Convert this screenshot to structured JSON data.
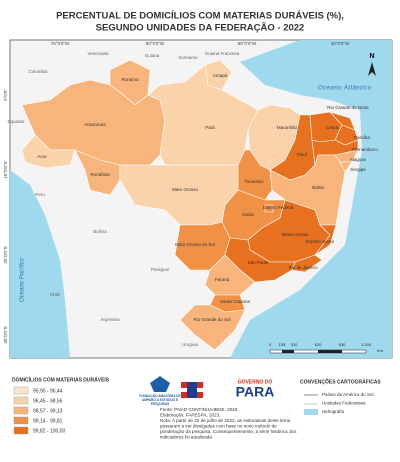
{
  "header": {
    "title": [
      "PERCENTUAL DE DOMICÍLIOS COM MATERIAS DURÁVEIS (%),",
      "SEGUNDO UNIDADES DA FEDERAÇÃO - 2022"
    ]
  },
  "graticule": {
    "lon": [
      "70°0'0\"W",
      "60°0'0\"W",
      "50°0'0\"W",
      "40°0'0\"W"
    ],
    "lat": [
      "0°0'0\"",
      "10°0'0\"S",
      "20°0'0\"S",
      "30°0'0\"S"
    ]
  },
  "states": [
    {
      "name": "Roraima",
      "color": "#f7b57c"
    },
    {
      "name": "Amapá",
      "color": "#fbd3ab"
    },
    {
      "name": "Amazonas",
      "color": "#f7b57c"
    },
    {
      "name": "Acre",
      "color": "#fbd3ab"
    },
    {
      "name": "Rondônia",
      "color": "#f7b57c"
    },
    {
      "name": "Pará",
      "color": "#fbd3ab"
    },
    {
      "name": "Mato Grosso",
      "color": "#fbd3ab"
    },
    {
      "name": "Maranhão",
      "color": "#fbd3ab"
    },
    {
      "name": "Tocantins",
      "color": "#f19145"
    },
    {
      "name": "Piauí",
      "color": "#e8711f"
    },
    {
      "name": "Ceará",
      "color": "#e8711f"
    },
    {
      "name": "Rio Grande do Norte",
      "color": "#e8711f"
    },
    {
      "name": "Paraíba",
      "color": "#e8711f"
    },
    {
      "name": "Pernambuco",
      "color": "#e8711f"
    },
    {
      "name": "Alagoas",
      "color": "#f7b57c"
    },
    {
      "name": "Sergipe",
      "color": "#f7b57c"
    },
    {
      "name": "Bahia",
      "color": "#f7b57c"
    },
    {
      "name": "Goiás",
      "color": "#f19145"
    },
    {
      "name": "Distrito Federal",
      "color": "#f19145"
    },
    {
      "name": "Mato Grosso do Sul",
      "color": "#f19145"
    },
    {
      "name": "Minas Gerais",
      "color": "#e8711f"
    },
    {
      "name": "Espírito Santo",
      "color": "#e8711f"
    },
    {
      "name": "Rio de Janeiro",
      "color": "#e8711f"
    },
    {
      "name": "São Paulo",
      "color": "#e8711f"
    },
    {
      "name": "Paraná",
      "color": "#f7b57c"
    },
    {
      "name": "Santa Catarina",
      "color": "#f19145"
    },
    {
      "name": "Rio Grande do Sul",
      "color": "#f7b57c"
    }
  ],
  "countries": [
    "Venezuela",
    "Guiana",
    "Suriname",
    "Guiana Francesa",
    "Colombia",
    "Equador",
    "Peru",
    "Bolívia",
    "Paraguai",
    "Chile",
    "Argentina",
    "Uruguai"
  ],
  "oceans": [
    "Oceano Atlântico",
    "Oceano Pacífico"
  ],
  "north": "N",
  "scale": {
    "labels": [
      "0",
      "155",
      "310",
      "620",
      "930",
      "1.240"
    ],
    "unit": "Km"
  },
  "legend": {
    "title": "DOMICÍLIOS COM MATERIAS DURÁVEIS",
    "classes": [
      {
        "label": "95,90 - 96,44",
        "color": "#fde6cc"
      },
      {
        "label": "96,45 - 98,56",
        "color": "#fbd3ab"
      },
      {
        "label": "98,57 - 99,13",
        "color": "#f7b57c"
      },
      {
        "label": "99,14 - 99,81",
        "color": "#f19145"
      },
      {
        "label": "99,82 - 100,00",
        "color": "#e8711f"
      }
    ]
  },
  "logos": {
    "fapespa": [
      "FUNDAÇÃO AMAZÔNIA DE",
      "AMPARO A ESTUDOS E",
      "PESQUISAS"
    ],
    "governo": "GOVERNO DO",
    "para": "PARA"
  },
  "notes": [
    "Fonte: PNAD CONTÍNUA/IBGE, 2023.",
    "Elaboração: FAPESPA, 2023.",
    "Nota: A partir de 22 de julho de 2022, as estimativas deste tema",
    "passaram a ser divulgadas com base no novo método de",
    "ponderação da pesquisa. Consequentemente, a série histórica dos",
    "indicadores foi atualizada."
  ],
  "conventions": {
    "title": "CONVENÇÕES CARTOGRÁFICAS",
    "items": [
      "Países da América do Sul",
      "Unidades Federativas",
      "Hidrografia"
    ]
  }
}
